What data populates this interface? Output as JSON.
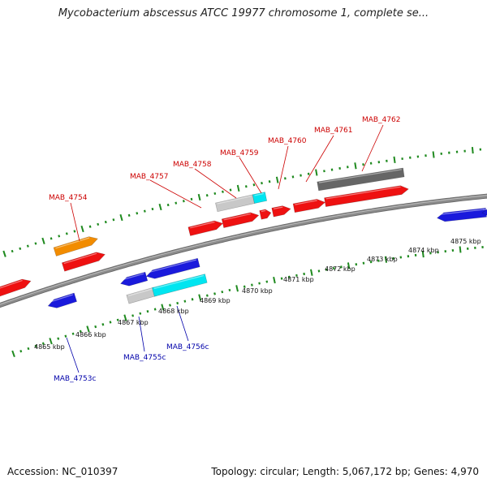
{
  "title": "Mycobacterium abscessus ATCC 19977 chromosome 1, complete se...",
  "footer": {
    "accession": "Accession: NC_010397",
    "summary": "Topology: circular; Length: 5,067,172 bp; Genes: 4,970"
  },
  "colors": {
    "forward_gene": "#ee1111",
    "reverse_gene": "#1a1adc",
    "forward_label": "#cc0000",
    "reverse_label": "#0000aa",
    "tick": "#1f8a1f",
    "backbone": "#8c8c8c",
    "orange": "#f28c00",
    "cyan": "#00e5f0",
    "light_grey": "#c8c8c8",
    "dark_grey": "#666666"
  },
  "scale": {
    "unit": "kbp",
    "labels": [
      "4865 kbp",
      "4866 kbp",
      "4867 kbp",
      "4868 kbp",
      "4869 kbp",
      "4870 kbp",
      "4871 kbp",
      "4872 kbp",
      "4873 kbp",
      "4874 kbp",
      "4875 kbp"
    ]
  },
  "gene_labels": {
    "forward": [
      "MAB_4754",
      "MAB_4757",
      "MAB_4758",
      "MAB_4759",
      "MAB_4760",
      "MAB_4761",
      "MAB_4762"
    ],
    "reverse": [
      "MAB_4753c",
      "MAB_4755c",
      "MAB_4756c"
    ]
  }
}
